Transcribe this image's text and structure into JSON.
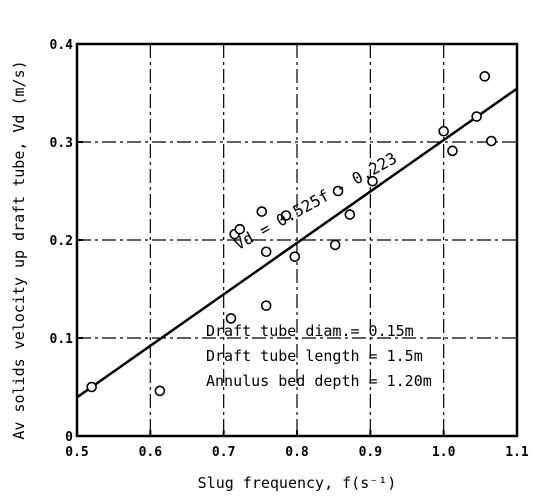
{
  "chart_data": {
    "type": "scatter",
    "xlabel": "Slug frequency, f(s⁻¹)",
    "ylabel": "Av solids velocity up draft tube, Vd (m/s)",
    "xlim": [
      0.5,
      1.1
    ],
    "ylim": [
      0,
      0.4
    ],
    "x_ticks": [
      "0.5",
      "0.6",
      "0.7",
      "0.8",
      "0.9",
      "1.0",
      "1.1"
    ],
    "y_ticks": [
      "0",
      "0.1",
      "0.2",
      "0.3",
      "0.4"
    ],
    "grid": true,
    "points": [
      {
        "x": 0.52,
        "y": 0.05
      },
      {
        "x": 0.613,
        "y": 0.046
      },
      {
        "x": 0.71,
        "y": 0.12
      },
      {
        "x": 0.715,
        "y": 0.206
      },
      {
        "x": 0.722,
        "y": 0.211
      },
      {
        "x": 0.752,
        "y": 0.229
      },
      {
        "x": 0.758,
        "y": 0.188
      },
      {
        "x": 0.758,
        "y": 0.133
      },
      {
        "x": 0.785,
        "y": 0.225
      },
      {
        "x": 0.797,
        "y": 0.183
      },
      {
        "x": 0.852,
        "y": 0.195
      },
      {
        "x": 0.856,
        "y": 0.25
      },
      {
        "x": 0.872,
        "y": 0.226
      },
      {
        "x": 0.903,
        "y": 0.26
      },
      {
        "x": 1.0,
        "y": 0.311
      },
      {
        "x": 1.012,
        "y": 0.291
      },
      {
        "x": 1.045,
        "y": 0.326
      },
      {
        "x": 1.056,
        "y": 0.367
      },
      {
        "x": 1.065,
        "y": 0.301
      }
    ],
    "fit_line": {
      "slope": 0.525,
      "intercept": -0.223,
      "x_range": [
        0.5,
        1.1
      ]
    },
    "equation_label": "Vd = 0.525f - 0.223",
    "annotations": [
      "Draft tube diam.= 0.15m",
      "Draft tube length = 1.5m",
      "Annulus bed depth = 1.20m"
    ]
  }
}
